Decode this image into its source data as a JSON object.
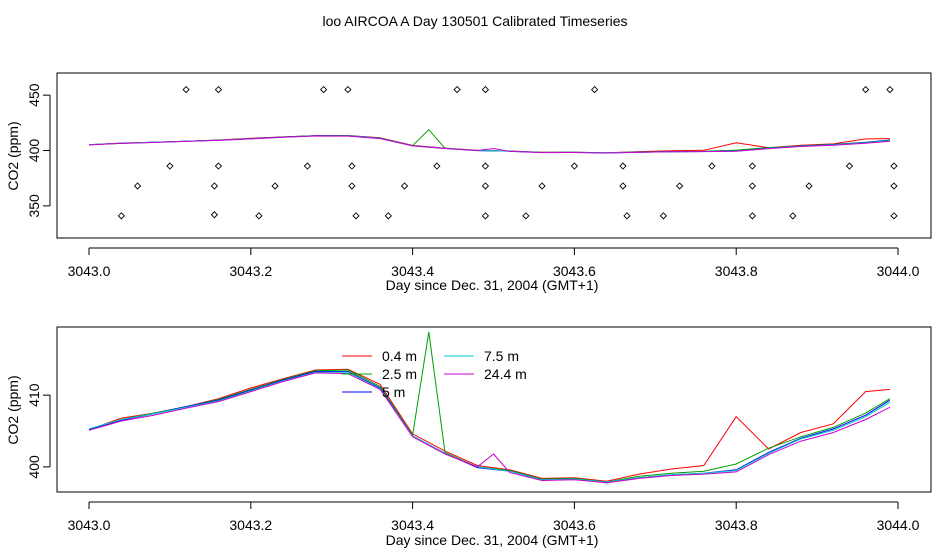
{
  "page_title": "loo AIRCOA A  Day 130501  Calibrated Timeseries",
  "chart_data": [
    {
      "type": "line",
      "xlabel": "Day since Dec. 31, 2004 (GMT+1)",
      "ylabel": "CO2 (ppm)",
      "xlim": [
        3043.0,
        3044.0
      ],
      "ylim": [
        321,
        470
      ],
      "x_ticks": [
        "3043.0",
        "3043.2",
        "3043.4",
        "3043.6",
        "3043.8",
        "3044.0"
      ],
      "y_ticks": [
        "350",
        "400",
        "450"
      ],
      "grid": false,
      "series": [
        {
          "name": "0.4 m",
          "color": "#ff0000",
          "values": [
            [
              3043.0,
              405.2
            ],
            [
              3043.04,
              406.8
            ],
            [
              3043.08,
              407.5
            ],
            [
              3043.12,
              408.4
            ],
            [
              3043.16,
              409.5
            ],
            [
              3043.2,
              411.0
            ],
            [
              3043.24,
              412.3
            ],
            [
              3043.28,
              413.5
            ],
            [
              3043.32,
              413.6
            ],
            [
              3043.36,
              411.5
            ],
            [
              3043.4,
              404.6
            ],
            [
              3043.44,
              402.2
            ],
            [
              3043.48,
              400.2
            ],
            [
              3043.52,
              399.6
            ],
            [
              3043.56,
              398.4
            ],
            [
              3043.6,
              398.5
            ],
            [
              3043.64,
              398.0
            ],
            [
              3043.68,
              399.0
            ],
            [
              3043.72,
              399.7
            ],
            [
              3043.76,
              400.2
            ],
            [
              3043.8,
              407.0
            ],
            [
              3043.84,
              402.5
            ],
            [
              3043.88,
              404.8
            ],
            [
              3043.92,
              406.0
            ],
            [
              3043.96,
              410.5
            ],
            [
              3043.99,
              410.8
            ]
          ]
        },
        {
          "name": "2.5 m",
          "color": "#00a000",
          "values": [
            [
              3043.0,
              405.2
            ],
            [
              3043.04,
              406.6
            ],
            [
              3043.08,
              407.5
            ],
            [
              3043.12,
              408.4
            ],
            [
              3043.16,
              409.4
            ],
            [
              3043.2,
              410.8
            ],
            [
              3043.24,
              412.2
            ],
            [
              3043.28,
              413.4
            ],
            [
              3043.32,
              413.5
            ],
            [
              3043.36,
              411.2
            ],
            [
              3043.4,
              404.4
            ],
            [
              3043.42,
              418.8
            ],
            [
              3043.44,
              402.0
            ],
            [
              3043.48,
              400.0
            ],
            [
              3043.52,
              399.5
            ],
            [
              3043.56,
              398.3
            ],
            [
              3043.6,
              398.4
            ],
            [
              3043.64,
              397.9
            ],
            [
              3043.68,
              398.7
            ],
            [
              3043.72,
              399.1
            ],
            [
              3043.76,
              399.4
            ],
            [
              3043.8,
              400.4
            ],
            [
              3043.84,
              402.6
            ],
            [
              3043.88,
              404.2
            ],
            [
              3043.92,
              405.5
            ],
            [
              3043.96,
              407.5
            ],
            [
              3043.99,
              409.5
            ]
          ]
        },
        {
          "name": "5 m",
          "color": "#0000ff",
          "values": [
            [
              3043.0,
              405.2
            ],
            [
              3043.04,
              406.5
            ],
            [
              3043.08,
              407.4
            ],
            [
              3043.12,
              408.4
            ],
            [
              3043.16,
              409.3
            ],
            [
              3043.2,
              410.7
            ],
            [
              3043.24,
              412.1
            ],
            [
              3043.28,
              413.3
            ],
            [
              3043.32,
              413.3
            ],
            [
              3043.36,
              411.0
            ],
            [
              3043.4,
              404.3
            ],
            [
              3043.44,
              401.9
            ],
            [
              3043.48,
              399.9
            ],
            [
              3043.52,
              399.4
            ],
            [
              3043.56,
              398.2
            ],
            [
              3043.6,
              398.3
            ],
            [
              3043.64,
              397.8
            ],
            [
              3043.68,
              398.5
            ],
            [
              3043.72,
              398.9
            ],
            [
              3043.76,
              399.1
            ],
            [
              3043.8,
              399.6
            ],
            [
              3043.84,
              402.0
            ],
            [
              3043.88,
              404.0
            ],
            [
              3043.92,
              405.3
            ],
            [
              3043.96,
              407.2
            ],
            [
              3043.99,
              409.3
            ]
          ]
        },
        {
          "name": "7.5 m",
          "color": "#00cccc",
          "values": [
            [
              3043.0,
              405.3
            ],
            [
              3043.04,
              406.6
            ],
            [
              3043.08,
              407.4
            ],
            [
              3043.12,
              408.3
            ],
            [
              3043.16,
              409.2
            ],
            [
              3043.2,
              410.6
            ],
            [
              3043.24,
              412.0
            ],
            [
              3043.28,
              413.2
            ],
            [
              3043.32,
              413.2
            ],
            [
              3043.36,
              410.9
            ],
            [
              3043.4,
              404.3
            ],
            [
              3043.44,
              401.9
            ],
            [
              3043.48,
              400.0
            ],
            [
              3043.52,
              399.4
            ],
            [
              3043.56,
              398.2
            ],
            [
              3043.6,
              398.3
            ],
            [
              3043.64,
              397.9
            ],
            [
              3043.68,
              398.5
            ],
            [
              3043.72,
              398.9
            ],
            [
              3043.76,
              399.1
            ],
            [
              3043.8,
              399.5
            ],
            [
              3043.84,
              401.9
            ],
            [
              3043.88,
              403.9
            ],
            [
              3043.92,
              405.1
            ],
            [
              3043.96,
              407.0
            ],
            [
              3043.99,
              409.0
            ]
          ]
        },
        {
          "name": "24.4 m",
          "color": "#cc00cc",
          "values": [
            [
              3043.0,
              405.1
            ],
            [
              3043.04,
              406.4
            ],
            [
              3043.08,
              407.2
            ],
            [
              3043.12,
              408.2
            ],
            [
              3043.16,
              409.1
            ],
            [
              3043.2,
              410.5
            ],
            [
              3043.24,
              411.9
            ],
            [
              3043.28,
              413.1
            ],
            [
              3043.32,
              413.0
            ],
            [
              3043.36,
              410.8
            ],
            [
              3043.4,
              404.2
            ],
            [
              3043.44,
              401.8
            ],
            [
              3043.48,
              400.0
            ],
            [
              3043.5,
              401.8
            ],
            [
              3043.52,
              399.2
            ],
            [
              3043.56,
              398.1
            ],
            [
              3043.6,
              398.2
            ],
            [
              3043.64,
              397.8
            ],
            [
              3043.68,
              398.4
            ],
            [
              3043.72,
              398.8
            ],
            [
              3043.76,
              399.0
            ],
            [
              3043.8,
              399.3
            ],
            [
              3043.84,
              401.7
            ],
            [
              3043.88,
              403.6
            ],
            [
              3043.92,
              404.8
            ],
            [
              3043.96,
              406.6
            ],
            [
              3043.99,
              408.3
            ]
          ]
        }
      ],
      "markers": {
        "shape": "open-diamond",
        "values": [
          [
            3043.04,
            341
          ],
          [
            3043.06,
            368
          ],
          [
            3043.1,
            386
          ],
          [
            3043.12,
            455
          ],
          [
            3043.155,
            342
          ],
          [
            3043.155,
            368
          ],
          [
            3043.16,
            386
          ],
          [
            3043.16,
            455
          ],
          [
            3043.21,
            341
          ],
          [
            3043.23,
            368
          ],
          [
            3043.27,
            386
          ],
          [
            3043.29,
            455
          ],
          [
            3043.32,
            455
          ],
          [
            3043.325,
            386
          ],
          [
            3043.325,
            368
          ],
          [
            3043.33,
            341
          ],
          [
            3043.37,
            341
          ],
          [
            3043.39,
            368
          ],
          [
            3043.43,
            386
          ],
          [
            3043.455,
            455
          ],
          [
            3043.49,
            455
          ],
          [
            3043.49,
            386
          ],
          [
            3043.49,
            368
          ],
          [
            3043.49,
            341
          ],
          [
            3043.54,
            341
          ],
          [
            3043.56,
            368
          ],
          [
            3043.6,
            386
          ],
          [
            3043.625,
            455
          ],
          [
            3043.66,
            386
          ],
          [
            3043.66,
            368
          ],
          [
            3043.665,
            341
          ],
          [
            3043.71,
            341
          ],
          [
            3043.73,
            368
          ],
          [
            3043.77,
            386
          ],
          [
            3043.82,
            386
          ],
          [
            3043.82,
            368
          ],
          [
            3043.82,
            341
          ],
          [
            3043.87,
            341
          ],
          [
            3043.89,
            368
          ],
          [
            3043.94,
            386
          ],
          [
            3043.96,
            455
          ],
          [
            3043.99,
            455
          ],
          [
            3043.995,
            386
          ],
          [
            3043.995,
            368
          ],
          [
            3043.995,
            341
          ]
        ]
      }
    },
    {
      "type": "line",
      "xlabel": "Day since Dec. 31, 2004 (GMT+1)",
      "ylabel": "CO2 (ppm)",
      "xlim": [
        3043.0,
        3044.0
      ],
      "ylim": [
        396.5,
        419.5
      ],
      "x_ticks": [
        "3043.0",
        "3043.2",
        "3043.4",
        "3043.6",
        "3043.8",
        "3044.0"
      ],
      "y_ticks": [
        "400",
        "410"
      ],
      "grid": false,
      "legend": {
        "placement": "top-center",
        "columns": 2,
        "entries": [
          "0.4 m",
          "2.5 m",
          "5 m",
          "7.5 m",
          "24.4 m"
        ]
      },
      "series_ref": "same as first panel"
    }
  ]
}
